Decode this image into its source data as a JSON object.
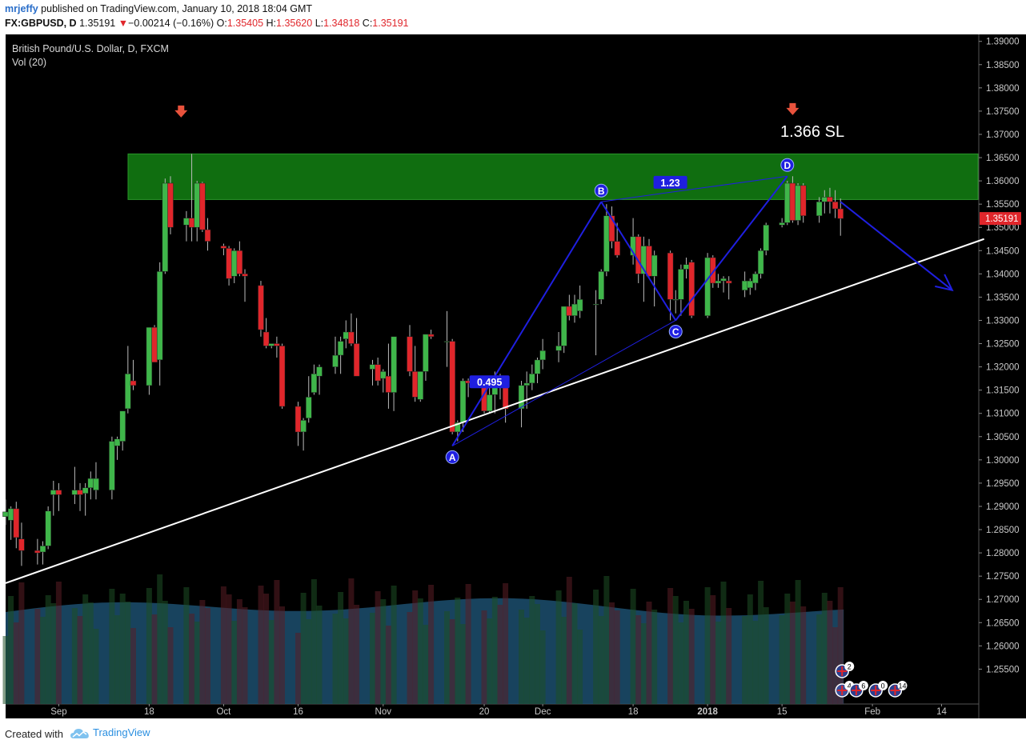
{
  "header": {
    "author": "mrjeffy",
    "published_text": "published on TradingView.com, January 10, 2018 18:04 GMT",
    "symbol": "FX:GBPUSD, D",
    "last": "1.35191",
    "change_arrow": "▼",
    "change": "−0.00214 (−0.16%)",
    "o_label": "O:",
    "o_value": "1.35405",
    "h_label": "H:",
    "h_value": "1.35620",
    "l_label": "L:",
    "l_value": "1.34818",
    "c_label": "C:",
    "c_value": "1.35191"
  },
  "legend": {
    "title": "British Pound/U.S. Dollar, D, FXCM",
    "volume": "Vol (20)"
  },
  "footer": {
    "created_with": "Created with",
    "brand": "TradingView"
  },
  "colors": {
    "background": "#000000",
    "up": "#3fb64a",
    "down": "#e0262b",
    "zone": "#127a12",
    "pattern": "#1f1fe0",
    "trendline": "#ffffff",
    "volume_ma": "#1c4f6e",
    "price_badge": "#e0262b"
  },
  "icons": [
    "arrow-down-marker-icon",
    "uk-flag-event-icon",
    "us-flag-event-icon",
    "tradingview-cloud-icon"
  ],
  "chart_data": {
    "type": "candlestick",
    "x_axis": {
      "type": "date",
      "range": [
        "2017-08-22",
        "2018-02-21"
      ],
      "tick_labels": [
        {
          "date": "2017-09-01",
          "label": "Sep"
        },
        {
          "date": "2017-09-18",
          "label": "18"
        },
        {
          "date": "2017-10-02",
          "label": "Oct"
        },
        {
          "date": "2017-10-16",
          "label": "16"
        },
        {
          "date": "2017-11-01",
          "label": "Nov"
        },
        {
          "date": "2017-11-20",
          "label": "20"
        },
        {
          "date": "2017-12-01",
          "label": "Dec"
        },
        {
          "date": "2017-12-18",
          "label": "18"
        },
        {
          "date": "2018-01-01",
          "label": "2018"
        },
        {
          "date": "2018-01-15",
          "label": "15"
        },
        {
          "date": "2018-02-01",
          "label": "Feb"
        },
        {
          "date": "2018-02-14",
          "label": "14"
        }
      ]
    },
    "y_axis": {
      "range": [
        1.2475,
        1.3915
      ],
      "tick_labels": [
        "1.39000",
        "1.38500",
        "1.38000",
        "1.37500",
        "1.37000",
        "1.36500",
        "1.36000",
        "1.35500",
        "1.35000",
        "1.34500",
        "1.34000",
        "1.33500",
        "1.33000",
        "1.32500",
        "1.32000",
        "1.31500",
        "1.31000",
        "1.30500",
        "1.30000",
        "1.29500",
        "1.29000",
        "1.28500",
        "1.28000",
        "1.27500",
        "1.27000",
        "1.26500",
        "1.26000",
        "1.25500"
      ],
      "current_price_label": "1.35191",
      "current_price": 1.35191
    },
    "grid": false,
    "candles": [
      {
        "date": "2017-08-22",
        "o": 1.2878,
        "h": 1.2915,
        "l": 1.286,
        "c": 1.2888
      },
      {
        "date": "2017-08-23",
        "o": 1.287,
        "h": 1.29,
        "l": 1.2828,
        "c": 1.2895
      },
      {
        "date": "2017-08-24",
        "o": 1.2895,
        "h": 1.291,
        "l": 1.281,
        "c": 1.2833
      },
      {
        "date": "2017-08-25",
        "o": 1.283,
        "h": 1.2865,
        "l": 1.2772,
        "c": 1.2805
      },
      {
        "date": "2017-08-28",
        "o": 1.2805,
        "h": 1.283,
        "l": 1.2775,
        "c": 1.28
      },
      {
        "date": "2017-08-29",
        "o": 1.2802,
        "h": 1.2825,
        "l": 1.2775,
        "c": 1.2815
      },
      {
        "date": "2017-08-30",
        "o": 1.2815,
        "h": 1.29,
        "l": 1.2808,
        "c": 1.289
      },
      {
        "date": "2017-08-31",
        "o": 1.2925,
        "h": 1.2955,
        "l": 1.288,
        "c": 1.2935
      },
      {
        "date": "2017-09-01",
        "o": 1.2935,
        "h": 1.295,
        "l": 1.289,
        "c": 1.2925
      },
      {
        "date": "2017-09-04",
        "o": 1.2925,
        "h": 1.2985,
        "l": 1.2905,
        "c": 1.2935
      },
      {
        "date": "2017-09-05",
        "o": 1.2935,
        "h": 1.295,
        "l": 1.289,
        "c": 1.2925
      },
      {
        "date": "2017-09-06",
        "o": 1.2928,
        "h": 1.295,
        "l": 1.288,
        "c": 1.294
      },
      {
        "date": "2017-09-07",
        "o": 1.294,
        "h": 1.2975,
        "l": 1.2915,
        "c": 1.296
      },
      {
        "date": "2017-09-08",
        "o": 1.2935,
        "h": 1.2995,
        "l": 1.2915,
        "c": 1.296
      },
      {
        "date": "2017-09-11",
        "o": 1.2935,
        "h": 1.305,
        "l": 1.2915,
        "c": 1.304
      },
      {
        "date": "2017-09-12",
        "o": 1.303,
        "h": 1.305,
        "l": 1.3,
        "c": 1.3045
      },
      {
        "date": "2017-09-13",
        "o": 1.304,
        "h": 1.31,
        "l": 1.302,
        "c": 1.3105
      },
      {
        "date": "2017-09-14",
        "o": 1.311,
        "h": 1.3245,
        "l": 1.31,
        "c": 1.3185
      },
      {
        "date": "2017-09-15",
        "o": 1.317,
        "h": 1.3215,
        "l": 1.315,
        "c": 1.316
      },
      {
        "date": "2017-09-18",
        "o": 1.316,
        "h": 1.3285,
        "l": 1.314,
        "c": 1.3285
      },
      {
        "date": "2017-09-19",
        "o": 1.3285,
        "h": 1.329,
        "l": 1.321,
        "c": 1.321
      },
      {
        "date": "2017-09-20",
        "o": 1.3215,
        "h": 1.3425,
        "l": 1.316,
        "c": 1.3405
      },
      {
        "date": "2017-09-21",
        "o": 1.3405,
        "h": 1.3605,
        "l": 1.34,
        "c": 1.3595
      },
      {
        "date": "2017-09-22",
        "o": 1.3595,
        "h": 1.361,
        "l": 1.3485,
        "c": 1.35
      },
      {
        "date": "2017-09-25",
        "o": 1.3505,
        "h": 1.3535,
        "l": 1.347,
        "c": 1.352
      },
      {
        "date": "2017-09-26",
        "o": 1.352,
        "h": 1.3658,
        "l": 1.347,
        "c": 1.35
      },
      {
        "date": "2017-09-27",
        "o": 1.35,
        "h": 1.36,
        "l": 1.347,
        "c": 1.3595
      },
      {
        "date": "2017-09-28",
        "o": 1.3595,
        "h": 1.3598,
        "l": 1.349,
        "c": 1.3495
      },
      {
        "date": "2017-09-29",
        "o": 1.3495,
        "h": 1.352,
        "l": 1.345,
        "c": 1.347
      },
      {
        "date": "2017-10-02",
        "o": 1.346,
        "h": 1.3465,
        "l": 1.344,
        "c": 1.3455
      },
      {
        "date": "2017-10-03",
        "o": 1.3455,
        "h": 1.346,
        "l": 1.3375,
        "c": 1.339
      },
      {
        "date": "2017-10-04",
        "o": 1.3395,
        "h": 1.3455,
        "l": 1.338,
        "c": 1.345
      },
      {
        "date": "2017-10-05",
        "o": 1.345,
        "h": 1.347,
        "l": 1.3395,
        "c": 1.34
      },
      {
        "date": "2017-10-06",
        "o": 1.34,
        "h": 1.341,
        "l": 1.334,
        "c": 1.3395
      },
      {
        "date": "2017-10-09",
        "o": 1.3375,
        "h": 1.3385,
        "l": 1.3265,
        "c": 1.328
      },
      {
        "date": "2017-10-10",
        "o": 1.3275,
        "h": 1.3305,
        "l": 1.324,
        "c": 1.3245
      },
      {
        "date": "2017-10-11",
        "o": 1.3245,
        "h": 1.325,
        "l": 1.324,
        "c": 1.325
      },
      {
        "date": "2017-10-12",
        "o": 1.325,
        "h": 1.3265,
        "l": 1.322,
        "c": 1.3245
      },
      {
        "date": "2017-10-13",
        "o": 1.3245,
        "h": 1.325,
        "l": 1.311,
        "c": 1.3115
      },
      {
        "date": "2017-10-16",
        "o": 1.3115,
        "h": 1.3125,
        "l": 1.303,
        "c": 1.306
      },
      {
        "date": "2017-10-17",
        "o": 1.306,
        "h": 1.309,
        "l": 1.302,
        "c": 1.3085
      },
      {
        "date": "2017-10-18",
        "o": 1.309,
        "h": 1.318,
        "l": 1.308,
        "c": 1.3135
      },
      {
        "date": "2017-10-19",
        "o": 1.3145,
        "h": 1.3205,
        "l": 1.314,
        "c": 1.3185
      },
      {
        "date": "2017-10-20",
        "o": 1.318,
        "h": 1.3205,
        "l": 1.314,
        "c": 1.32
      },
      {
        "date": "2017-10-23",
        "o": 1.32,
        "h": 1.3265,
        "l": 1.3185,
        "c": 1.3225
      },
      {
        "date": "2017-10-24",
        "o": 1.3225,
        "h": 1.3265,
        "l": 1.3185,
        "c": 1.3255
      },
      {
        "date": "2017-10-25",
        "o": 1.326,
        "h": 1.33,
        "l": 1.324,
        "c": 1.3275
      },
      {
        "date": "2017-10-26",
        "o": 1.3275,
        "h": 1.3315,
        "l": 1.3245,
        "c": 1.325
      },
      {
        "date": "2017-10-27",
        "o": 1.325,
        "h": 1.3305,
        "l": 1.318,
        "c": 1.318
      },
      {
        "date": "2017-10-30",
        "o": 1.3195,
        "h": 1.3215,
        "l": 1.316,
        "c": 1.3205
      },
      {
        "date": "2017-10-31",
        "o": 1.3205,
        "h": 1.322,
        "l": 1.316,
        "c": 1.317
      },
      {
        "date": "2017-11-01",
        "o": 1.3175,
        "h": 1.3195,
        "l": 1.3145,
        "c": 1.319
      },
      {
        "date": "2017-11-02",
        "o": 1.318,
        "h": 1.325,
        "l": 1.311,
        "c": 1.3145
      },
      {
        "date": "2017-11-03",
        "o": 1.3145,
        "h": 1.3265,
        "l": 1.3105,
        "c": 1.3265
      },
      {
        "date": "2017-11-06",
        "o": 1.3265,
        "h": 1.329,
        "l": 1.318,
        "c": 1.319
      },
      {
        "date": "2017-11-07",
        "o": 1.319,
        "h": 1.3245,
        "l": 1.3125,
        "c": 1.3135
      },
      {
        "date": "2017-11-08",
        "o": 1.313,
        "h": 1.318,
        "l": 1.3125,
        "c": 1.319
      },
      {
        "date": "2017-11-09",
        "o": 1.319,
        "h": 1.327,
        "l": 1.317,
        "c": 1.327
      },
      {
        "date": "2017-11-10",
        "o": 1.327,
        "h": 1.328,
        "l": 1.326,
        "c": 1.3265
      },
      {
        "date": "2017-11-13",
        "o": 1.3255,
        "h": 1.332,
        "l": 1.32,
        "c": 1.3255
      },
      {
        "date": "2017-11-14",
        "o": 1.3255,
        "h": 1.326,
        "l": 1.3055,
        "c": 1.306
      },
      {
        "date": "2017-11-15",
        "o": 1.306,
        "h": 1.3085,
        "l": 1.304,
        "c": 1.308
      },
      {
        "date": "2017-11-16",
        "o": 1.308,
        "h": 1.3175,
        "l": 1.306,
        "c": 1.317
      },
      {
        "date": "2017-11-17",
        "o": 1.317,
        "h": 1.3175,
        "l": 1.3135,
        "c": 1.3165
      },
      {
        "date": "2017-11-20",
        "o": 1.3165,
        "h": 1.3175,
        "l": 1.31,
        "c": 1.3105
      },
      {
        "date": "2017-11-21",
        "o": 1.3105,
        "h": 1.3165,
        "l": 1.31,
        "c": 1.314
      },
      {
        "date": "2017-11-22",
        "o": 1.314,
        "h": 1.319,
        "l": 1.31,
        "c": 1.316
      },
      {
        "date": "2017-11-23",
        "o": 1.316,
        "h": 1.3185,
        "l": 1.313,
        "c": 1.3155
      },
      {
        "date": "2017-11-24",
        "o": 1.3155,
        "h": 1.317,
        "l": 1.308,
        "c": 1.311
      },
      {
        "date": "2017-11-27",
        "o": 1.311,
        "h": 1.317,
        "l": 1.307,
        "c": 1.316
      },
      {
        "date": "2017-11-28",
        "o": 1.316,
        "h": 1.319,
        "l": 1.311,
        "c": 1.3165
      },
      {
        "date": "2017-11-29",
        "o": 1.3165,
        "h": 1.3205,
        "l": 1.315,
        "c": 1.3185
      },
      {
        "date": "2017-11-30",
        "o": 1.3185,
        "h": 1.322,
        "l": 1.3165,
        "c": 1.3215
      },
      {
        "date": "2017-12-01",
        "o": 1.3215,
        "h": 1.326,
        "l": 1.3195,
        "c": 1.3235
      },
      {
        "date": "2017-12-04",
        "o": 1.3235,
        "h": 1.3275,
        "l": 1.321,
        "c": 1.3245
      },
      {
        "date": "2017-12-05",
        "o": 1.3245,
        "h": 1.333,
        "l": 1.323,
        "c": 1.333
      },
      {
        "date": "2017-12-06",
        "o": 1.333,
        "h": 1.3355,
        "l": 1.33,
        "c": 1.331
      },
      {
        "date": "2017-12-07",
        "o": 1.331,
        "h": 1.3355,
        "l": 1.3295,
        "c": 1.3335
      },
      {
        "date": "2017-12-08",
        "o": 1.332,
        "h": 1.3375,
        "l": 1.3305,
        "c": 1.3345
      },
      {
        "date": "2017-12-11",
        "o": 1.3335,
        "h": 1.3365,
        "l": 1.3225,
        "c": 1.3335
      },
      {
        "date": "2017-12-12",
        "o": 1.3345,
        "h": 1.341,
        "l": 1.3335,
        "c": 1.3405
      },
      {
        "date": "2017-12-13",
        "o": 1.3405,
        "h": 1.355,
        "l": 1.3395,
        "c": 1.3525
      },
      {
        "date": "2017-12-14",
        "o": 1.3525,
        "h": 1.3545,
        "l": 1.3455,
        "c": 1.347
      },
      {
        "date": "2017-12-15",
        "o": 1.347,
        "h": 1.351,
        "l": 1.3435,
        "c": 1.344
      },
      {
        "date": "2017-12-18",
        "o": 1.344,
        "h": 1.352,
        "l": 1.342,
        "c": 1.348
      },
      {
        "date": "2017-12-19",
        "o": 1.348,
        "h": 1.3485,
        "l": 1.338,
        "c": 1.34
      },
      {
        "date": "2017-12-20",
        "o": 1.34,
        "h": 1.348,
        "l": 1.334,
        "c": 1.346
      },
      {
        "date": "2017-12-21",
        "o": 1.346,
        "h": 1.3475,
        "l": 1.339,
        "c": 1.3395
      },
      {
        "date": "2017-12-22",
        "o": 1.3395,
        "h": 1.345,
        "l": 1.333,
        "c": 1.344
      },
      {
        "date": "2017-12-25",
        "o": 1.3445,
        "h": 1.345,
        "l": 1.33,
        "c": 1.3345
      },
      {
        "date": "2017-12-26",
        "o": 1.3345,
        "h": 1.3365,
        "l": 1.3315,
        "c": 1.3345
      },
      {
        "date": "2017-12-27",
        "o": 1.3345,
        "h": 1.342,
        "l": 1.331,
        "c": 1.341
      },
      {
        "date": "2017-12-28",
        "o": 1.341,
        "h": 1.3435,
        "l": 1.339,
        "c": 1.342
      },
      {
        "date": "2017-12-29",
        "o": 1.3425,
        "h": 1.343,
        "l": 1.3305,
        "c": 1.331
      },
      {
        "date": "2018-01-01",
        "o": 1.331,
        "h": 1.3445,
        "l": 1.3305,
        "c": 1.3435
      },
      {
        "date": "2018-01-02",
        "o": 1.3435,
        "h": 1.344,
        "l": 1.337,
        "c": 1.338
      },
      {
        "date": "2018-01-03",
        "o": 1.338,
        "h": 1.34,
        "l": 1.337,
        "c": 1.3385
      },
      {
        "date": "2018-01-04",
        "o": 1.3385,
        "h": 1.3395,
        "l": 1.336,
        "c": 1.339
      },
      {
        "date": "2018-01-05",
        "o": 1.3385,
        "h": 1.3395,
        "l": 1.3345,
        "c": 1.338
      },
      {
        "date": "2018-01-08",
        "o": 1.3365,
        "h": 1.3405,
        "l": 1.335,
        "c": 1.3385
      },
      {
        "date": "2018-01-09",
        "o": 1.337,
        "h": 1.339,
        "l": 1.3355,
        "c": 1.3385
      },
      {
        "date": "2018-01-10",
        "o": 1.338,
        "h": 1.3405,
        "l": 1.3365,
        "c": 1.34
      },
      {
        "date": "2018-01-11",
        "o": 1.34,
        "h": 1.3455,
        "l": 1.339,
        "c": 1.345
      },
      {
        "date": "2018-01-12",
        "o": 1.345,
        "h": 1.351,
        "l": 1.344,
        "c": 1.3505
      },
      {
        "date": "2018-01-15",
        "o": 1.3505,
        "h": 1.352,
        "l": 1.35,
        "c": 1.351
      },
      {
        "date": "2018-01-16",
        "o": 1.351,
        "h": 1.36,
        "l": 1.3505,
        "c": 1.3595
      },
      {
        "date": "2018-01-17",
        "o": 1.3595,
        "h": 1.361,
        "l": 1.351,
        "c": 1.3515
      },
      {
        "date": "2018-01-18",
        "o": 1.3515,
        "h": 1.3595,
        "l": 1.3505,
        "c": 1.359
      },
      {
        "date": "2018-01-19",
        "o": 1.359,
        "h": 1.3595,
        "l": 1.351,
        "c": 1.3525
      },
      {
        "date": "2018-01-22",
        "o": 1.3525,
        "h": 1.3565,
        "l": 1.351,
        "c": 1.3555
      },
      {
        "date": "2018-01-23",
        "o": 1.3555,
        "h": 1.358,
        "l": 1.353,
        "c": 1.3565
      },
      {
        "date": "2018-01-24",
        "o": 1.3565,
        "h": 1.3585,
        "l": 1.353,
        "c": 1.3555
      },
      {
        "date": "2018-01-25",
        "o": 1.3555,
        "h": 1.358,
        "l": 1.352,
        "c": 1.354
      },
      {
        "date": "2018-01-26",
        "o": 1.354,
        "h": 1.3562,
        "l": 1.3482,
        "c": 1.3519
      }
    ],
    "volume": {
      "label": "Vol (20)",
      "moving_average": true
    },
    "annotations": {
      "text": [
        {
          "label": "1.366 SL"
        }
      ],
      "supply_zone": {
        "from": 1.356,
        "to": 1.3658
      },
      "trendline": {
        "p1": {
          "date": "2017-08-22",
          "price": 1.2735
        },
        "p2": {
          "date": "2018-02-22",
          "price": 1.3475
        }
      },
      "pattern_points": [
        {
          "label": "A",
          "date": "2017-11-14",
          "price": 1.303
        },
        {
          "label": "B",
          "date": "2017-12-12",
          "price": 1.3555
        },
        {
          "label": "C",
          "date": "2017-12-26",
          "price": 1.33
        },
        {
          "label": "D",
          "date": "2018-01-16",
          "price": 1.361
        }
      ],
      "ratios": [
        {
          "label": "0.495",
          "date": "2017-11-21",
          "price": 1.3168
        },
        {
          "label": "1.23",
          "date": "2017-12-25",
          "price": 1.3597
        }
      ],
      "projection": [
        {
          "date": "2018-01-26",
          "price": 1.3555
        },
        {
          "date": "2018-02-16",
          "price": 1.3365
        }
      ],
      "sell_arrows": [
        {
          "date": "2017-09-24",
          "price": 1.3745
        },
        {
          "date": "2018-01-17",
          "price": 1.375
        }
      ],
      "events": [
        {
          "date": "2018-01-26",
          "count": "2",
          "country": "UK"
        },
        {
          "date": "2018-01-26",
          "count": "4",
          "country": "US"
        },
        {
          "date": "2018-01-27",
          "count": "6",
          "country": "UK"
        },
        {
          "date": "2018-01-29",
          "count": "0",
          "country": "UK"
        },
        {
          "date": "2018-01-31",
          "count": "14",
          "country": "UK"
        }
      ]
    }
  }
}
